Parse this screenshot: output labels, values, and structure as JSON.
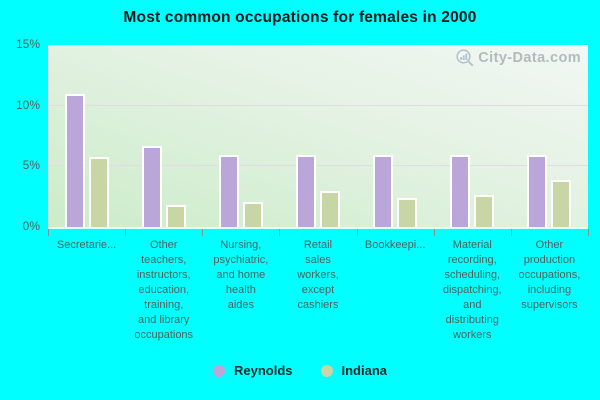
{
  "title": "Most common occupations for females in 2000",
  "watermark": {
    "text": "City-Data.com"
  },
  "y_axis": {
    "tick_labels": [
      "0%",
      "5%",
      "10%",
      "15%"
    ],
    "tick_values": [
      0,
      5,
      10,
      15
    ],
    "max": 15,
    "gridline_values": [
      5,
      10
    ]
  },
  "legend": {
    "items": [
      {
        "label": "Reynolds",
        "color": "#bba6d9"
      },
      {
        "label": "Indiana",
        "color": "#c8d5a4"
      }
    ]
  },
  "chart_data": {
    "type": "bar",
    "title": "Most common occupations for females in 2000",
    "categories": [
      "Secretarie...",
      "Other teachers, instructors, education, training, and library occupations",
      "Nursing, psychiatric, and home health aides",
      "Retail sales workers, except cashiers",
      "Bookkeepi...",
      "Material recording, scheduling, dispatching, and distributing workers",
      "Other production occupations, including supervisors"
    ],
    "category_display": [
      "Secretarie...",
      "Other\nteachers,\ninstructors,\neducation,\ntraining,\nand library\noccupations",
      "Nursing,\npsychiatric,\nand home\nhealth\naides",
      "Retail\nsales\nworkers,\nexcept\ncashiers",
      "Bookkeepi...",
      "Material\nrecording,\nscheduling,\ndispatching,\nand\ndistributing\nworkers",
      "Other\nproduction\noccupations,\nincluding\nsupervisors"
    ],
    "series": [
      {
        "name": "Reynolds",
        "color": "#bba6d9",
        "values": [
          11.0,
          6.7,
          5.9,
          5.9,
          5.9,
          5.9,
          5.9
        ]
      },
      {
        "name": "Indiana",
        "color": "#c8d5a4",
        "values": [
          5.8,
          1.8,
          2.1,
          3.0,
          2.4,
          2.6,
          3.9
        ]
      }
    ],
    "xlabel": "",
    "ylabel": "",
    "ylim": [
      0,
      15
    ],
    "grid": "horizontal",
    "legend_position": "bottom"
  },
  "colors": {
    "canvas_background": "#00ffff",
    "title_text": "#1a1a1a",
    "axis_text": "#4e615d",
    "gridline": "#e4d9e6",
    "bar_border": "#ffffff",
    "tick_mark": "#7d968f",
    "reynolds_bar": "#bba6d9",
    "indiana_bar": "#c8d5a4",
    "watermark_text": "#7e8c92"
  }
}
